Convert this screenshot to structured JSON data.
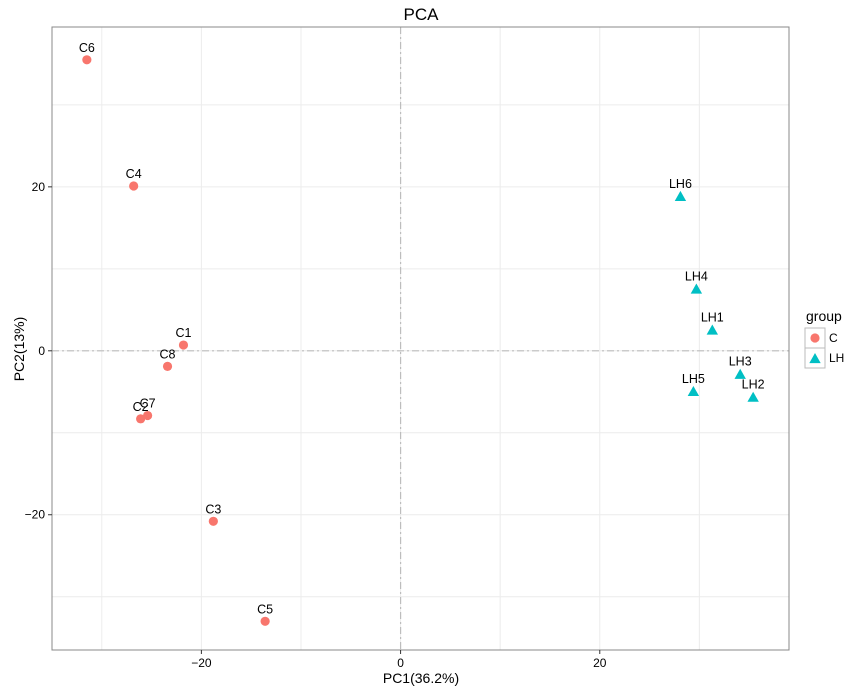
{
  "chart_data": {
    "type": "scatter",
    "title": "PCA",
    "xlabel": "PC1(36.2%)",
    "ylabel": "PC2(13%)",
    "xlim": [
      -35,
      39
    ],
    "ylim": [
      -36.5,
      39.5
    ],
    "xticks": [
      -20,
      0,
      20
    ],
    "yticks": [
      -20,
      0,
      20
    ],
    "xtick_labels": [
      "−20",
      "0",
      "20"
    ],
    "ytick_labels": [
      "−20",
      "0",
      "20"
    ],
    "grid": true,
    "reference_lines": {
      "x": 0,
      "y": 0
    },
    "legend": {
      "title": "group",
      "placement": "right",
      "entries": [
        {
          "name": "C",
          "color": "#F8766D",
          "marker": "circle"
        },
        {
          "name": "LH",
          "color": "#00BFC4",
          "marker": "triangle"
        }
      ]
    },
    "series": [
      {
        "name": "C",
        "color": "#F8766D",
        "marker": "circle",
        "points": [
          {
            "label": "C6",
            "x": -31.5,
            "y": 35.5
          },
          {
            "label": "C4",
            "x": -26.8,
            "y": 20.1
          },
          {
            "label": "C1",
            "x": -21.8,
            "y": 0.7
          },
          {
            "label": "C8",
            "x": -23.4,
            "y": -1.9
          },
          {
            "label": "C7",
            "x": -25.4,
            "y": -7.9
          },
          {
            "label": "C2",
            "x": -26.1,
            "y": -8.3
          },
          {
            "label": "C3",
            "x": -18.8,
            "y": -20.8
          },
          {
            "label": "C5",
            "x": -13.6,
            "y": -33.0
          }
        ]
      },
      {
        "name": "LH",
        "color": "#00BFC4",
        "marker": "triangle",
        "points": [
          {
            "label": "LH6",
            "x": 28.1,
            "y": 18.9
          },
          {
            "label": "LH4",
            "x": 29.7,
            "y": 7.6
          },
          {
            "label": "LH1",
            "x": 31.3,
            "y": 2.6
          },
          {
            "label": "LH3",
            "x": 34.1,
            "y": -2.8
          },
          {
            "label": "LH5",
            "x": 29.4,
            "y": -4.9
          },
          {
            "label": "LH2",
            "x": 35.4,
            "y": -5.6
          }
        ]
      }
    ]
  }
}
